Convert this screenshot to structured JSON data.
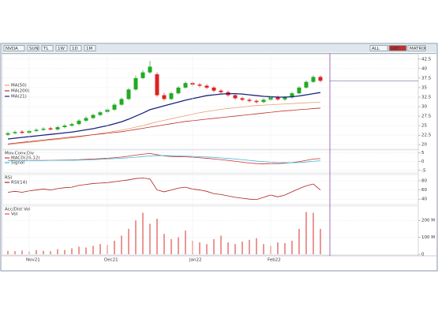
{
  "toolbar": [
    "NVDA",
    "SUN",
    "TL",
    "1W",
    "1D",
    "1M"
  ],
  "toolbar_right": [
    "ALL",
    "GRT",
    "MATRIX"
  ],
  "chart_data": [
    {
      "type": "candlestick",
      "up_color": "#22aa22",
      "down_color": "#dd2222",
      "open": [
        22.6,
        23.0,
        23.4,
        23.1,
        23.6,
        23.9,
        24.3,
        24.0,
        24.6,
        25.0,
        25.4,
        26.3,
        27.0,
        27.8,
        28.6,
        29.2,
        30.5,
        32.0,
        34.5,
        37.5,
        39.0,
        38.5,
        33.0,
        32.0,
        33.5,
        35.0,
        36.2,
        35.8,
        35.5,
        35.0,
        34.2,
        33.8,
        33.0,
        32.2,
        31.8,
        31.5,
        31.2,
        31.8,
        32.5,
        31.9,
        32.4,
        33.5,
        35.0,
        36.5,
        37.8
      ],
      "high": [
        23.4,
        23.7,
        23.8,
        24.0,
        24.3,
        24.6,
        24.7,
        25.0,
        25.4,
        25.8,
        26.7,
        27.4,
        28.2,
        28.9,
        29.6,
        30.9,
        32.4,
        34.9,
        38.2,
        39.6,
        42.0,
        39.0,
        33.6,
        33.9,
        35.4,
        36.6,
        36.6,
        36.2,
        35.9,
        35.4,
        34.6,
        34.2,
        33.4,
        32.6,
        32.2,
        31.9,
        32.2,
        32.9,
        32.9,
        32.8,
        33.9,
        35.4,
        36.9,
        38.2,
        38.2
      ],
      "low": [
        22.3,
        22.7,
        22.8,
        22.8,
        23.3,
        23.6,
        23.7,
        23.7,
        24.3,
        24.7,
        25.1,
        26.0,
        26.7,
        27.5,
        28.3,
        28.9,
        30.2,
        31.7,
        34.2,
        37.2,
        38.6,
        32.6,
        31.6,
        31.7,
        33.2,
        34.7,
        35.4,
        35.1,
        34.6,
        33.8,
        33.4,
        32.6,
        31.8,
        31.4,
        31.1,
        30.8,
        30.9,
        31.5,
        31.5,
        31.5,
        32.1,
        33.2,
        34.7,
        36.2,
        36.4
      ],
      "close": [
        23.0,
        23.3,
        23.1,
        23.6,
        23.9,
        24.2,
        24.0,
        24.6,
        25.0,
        25.4,
        26.3,
        27.0,
        27.8,
        28.5,
        29.2,
        30.5,
        32.0,
        34.5,
        37.5,
        39.0,
        40.5,
        33.0,
        32.0,
        33.5,
        35.0,
        36.2,
        35.8,
        35.5,
        35.0,
        34.2,
        33.8,
        33.0,
        32.2,
        31.8,
        31.5,
        31.2,
        31.8,
        32.5,
        31.9,
        32.4,
        33.5,
        35.0,
        36.5,
        37.8,
        36.8
      ],
      "series": [
        {
          "name": "MA(50)",
          "color": "#e8a070",
          "values": [
            20.0,
            20.2,
            20.4,
            20.6,
            20.8,
            21.0,
            21.2,
            21.4,
            21.6,
            21.8,
            22.0,
            22.3,
            22.6,
            22.9,
            23.2,
            23.5,
            23.8,
            24.2,
            24.6,
            25.0,
            25.5,
            26.0,
            26.4,
            26.8,
            27.2,
            27.6,
            28.0,
            28.4,
            28.7,
            29.0,
            29.3,
            29.5,
            29.7,
            29.9,
            30.1,
            30.3,
            30.4,
            30.5,
            30.6,
            30.7,
            30.8,
            30.9,
            31.0,
            31.1,
            31.2
          ]
        },
        {
          "name": "MA(200)",
          "color": "#c0302a",
          "values": [
            20.2,
            20.4,
            20.6,
            20.8,
            21.0,
            21.2,
            21.4,
            21.6,
            21.8,
            22.0,
            22.2,
            22.4,
            22.6,
            22.8,
            23.0,
            23.2,
            23.4,
            23.7,
            24.0,
            24.3,
            24.6,
            24.9,
            25.2,
            25.5,
            25.8,
            26.1,
            26.3,
            26.5,
            26.7,
            26.9,
            27.1,
            27.3,
            27.5,
            27.7,
            27.9,
            28.1,
            28.3,
            28.5,
            28.7,
            28.9,
            29.0,
            29.2,
            29.3,
            29.5,
            29.6
          ]
        },
        {
          "name": "MA(21)",
          "color": "#1a237e",
          "values": [
            21.5,
            21.7,
            21.9,
            22.1,
            22.3,
            22.5,
            22.7,
            22.9,
            23.1,
            23.3,
            23.6,
            23.9,
            24.2,
            24.6,
            25.0,
            25.5,
            26.0,
            26.7,
            27.5,
            28.3,
            29.2,
            29.7,
            30.2,
            30.7,
            31.2,
            31.7,
            32.1,
            32.5,
            32.9,
            33.1,
            33.3,
            33.4,
            33.4,
            33.3,
            33.1,
            32.9,
            32.7,
            32.6,
            32.5,
            32.5,
            32.6,
            32.8,
            33.1,
            33.4,
            33.7
          ]
        }
      ],
      "ylim": [
        19,
        43.5
      ],
      "yticks": [
        20,
        22.5,
        25,
        27.5,
        30,
        32.5,
        35,
        37.5,
        40,
        42.5
      ],
      "grid": true
    },
    {
      "type": "line",
      "title": "Mov.Conv.Div",
      "series": [
        {
          "name": "MACD(26,12)",
          "color": "#d03030",
          "values": [
            0.6,
            0.6,
            0.5,
            0.5,
            0.5,
            0.6,
            0.6,
            0.7,
            0.8,
            0.9,
            1.0,
            1.2,
            1.4,
            1.6,
            1.8,
            2.1,
            2.5,
            3.0,
            3.6,
            4.1,
            4.5,
            3.8,
            3.1,
            2.8,
            2.7,
            2.6,
            2.4,
            2.1,
            1.8,
            1.4,
            1.0,
            0.6,
            0.1,
            -0.4,
            -0.9,
            -1.2,
            -1.3,
            -1.2,
            -1.2,
            -1.0,
            -0.6,
            -0.1,
            0.6,
            1.4,
            1.6
          ]
        },
        {
          "name": "Signal",
          "color": "#40b8d8",
          "values": [
            0.5,
            0.5,
            0.5,
            0.5,
            0.5,
            0.5,
            0.6,
            0.6,
            0.7,
            0.7,
            0.8,
            0.9,
            1.0,
            1.2,
            1.4,
            1.6,
            1.8,
            2.1,
            2.4,
            2.8,
            3.1,
            3.3,
            3.3,
            3.2,
            3.1,
            3.0,
            2.9,
            2.7,
            2.5,
            2.3,
            2.0,
            1.7,
            1.4,
            1.0,
            0.6,
            0.2,
            -0.1,
            -0.4,
            -0.6,
            -0.7,
            -0.7,
            -0.6,
            -0.3,
            0.1,
            0.4
          ]
        }
      ],
      "ylim": [
        -6,
        6
      ],
      "yticks": [
        -5,
        0,
        5
      ],
      "grid": true
    },
    {
      "type": "line",
      "title": "RSI",
      "series": [
        {
          "name": "RSI(14)",
          "color": "#b02020",
          "values": [
            55,
            57,
            55,
            58,
            60,
            62,
            60,
            63,
            65,
            66,
            70,
            72,
            74,
            75,
            76,
            78,
            80,
            82,
            85,
            86,
            84,
            60,
            56,
            60,
            64,
            66,
            62,
            60,
            57,
            52,
            50,
            47,
            44,
            42,
            40,
            39,
            44,
            49,
            45,
            49,
            56,
            63,
            69,
            73,
            60
          ]
        }
      ],
      "ylim": [
        30,
        92
      ],
      "yticks": [
        40,
        60,
        80
      ],
      "grid": true
    },
    {
      "type": "bar",
      "title": "Acc/Dist Vol",
      "categories": [
        null,
        null,
        null,
        "Nov21",
        null,
        null,
        null,
        null,
        null,
        null,
        null,
        null,
        null,
        null,
        "Dec21",
        null,
        null,
        null,
        null,
        null,
        null,
        null,
        null,
        null,
        null,
        null,
        "Jan22",
        null,
        null,
        null,
        null,
        null,
        null,
        null,
        null,
        null,
        null,
        "Feb22",
        null,
        null,
        null,
        null,
        null,
        null,
        null
      ],
      "series": [
        {
          "name": "Vol",
          "color": "#e05050",
          "values": [
            20,
            18,
            22,
            15,
            25,
            20,
            18,
            30,
            25,
            35,
            45,
            40,
            50,
            60,
            55,
            80,
            110,
            150,
            200,
            245,
            180,
            210,
            120,
            90,
            100,
            140,
            80,
            70,
            60,
            90,
            110,
            70,
            60,
            75,
            85,
            95,
            60,
            50,
            70,
            65,
            80,
            150,
            250,
            245,
            150
          ]
        }
      ],
      "ylim": [
        0,
        280
      ],
      "yticks": [
        0,
        {
          "value": 100,
          "label": "100 M"
        },
        {
          "value": 200,
          "label": "200 M"
        }
      ],
      "grid": true
    }
  ]
}
